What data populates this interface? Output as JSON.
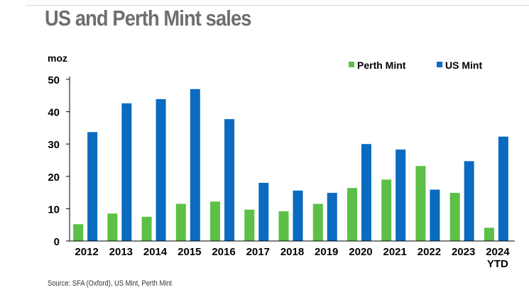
{
  "title": "US and Perth Mint sales",
  "source": "Source: SFA (Oxford), US Mint, Perth Mint",
  "chart_data": {
    "type": "bar",
    "title": "US and Perth Mint sales",
    "ylabel": "moz",
    "xlabel": "",
    "ylim": [
      0,
      50
    ],
    "yticks": [
      0,
      10,
      20,
      30,
      40,
      50
    ],
    "grid": false,
    "legend": "top-right",
    "categories": [
      "2012",
      "2013",
      "2014",
      "2015",
      "2016",
      "2017",
      "2018",
      "2019",
      "2020",
      "2021",
      "2022",
      "2023",
      "2024\nYTD"
    ],
    "series": [
      {
        "name": "Perth Mint",
        "color": "#5cc046",
        "values": [
          5.2,
          8.5,
          7.5,
          11.5,
          12.2,
          9.7,
          9.2,
          11.5,
          16.4,
          19.0,
          23.2,
          14.9,
          4.1
        ]
      },
      {
        "name": "US Mint",
        "color": "#0a6bc0",
        "values": [
          33.7,
          42.6,
          43.9,
          47.0,
          37.7,
          18.0,
          15.6,
          14.9,
          30.0,
          28.3,
          15.9,
          24.7,
          32.3
        ]
      }
    ]
  }
}
